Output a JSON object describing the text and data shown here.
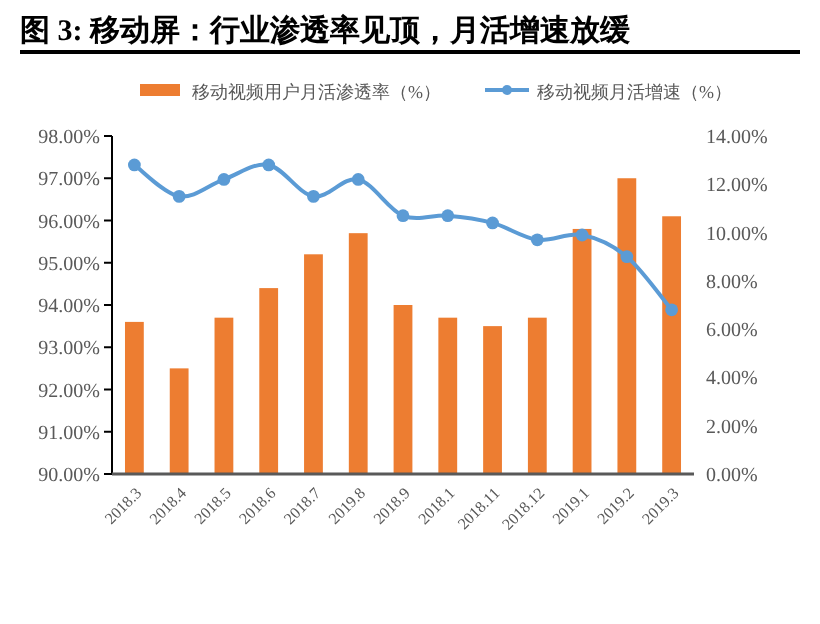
{
  "chart_data": {
    "type": "bar",
    "title": "图 3: 移动屏：行业渗透率见顶，月活增速放缓",
    "categories": [
      "2018.3",
      "2018.4",
      "2018.5",
      "2018.6",
      "2018.7",
      "2019.8",
      "2018.9",
      "2018.1",
      "2018.11",
      "2018.12",
      "2019.1",
      "2019.2",
      "2019.3"
    ],
    "series": [
      {
        "name": "移动视频用户月活渗透率（%）",
        "color": "#ed7d31",
        "values": [
          93.6,
          92.5,
          93.7,
          94.4,
          95.2,
          95.7,
          94.0,
          93.7,
          93.5,
          93.7,
          95.8,
          97.0,
          96.1
        ]
      },
      {
        "name": "移动视频月活增速（%）",
        "type": "line",
        "axis": "y2",
        "color": "#5b9bd5",
        "marker": "circle",
        "values": [
          12.8,
          11.5,
          12.2,
          12.8,
          11.5,
          12.2,
          10.7,
          10.7,
          10.4,
          9.7,
          9.9,
          9.0,
          6.8
        ]
      }
    ],
    "ylim": [
      90,
      98
    ],
    "yticks": [
      {
        "value": 90,
        "label": "90.00%"
      },
      {
        "value": 91,
        "label": "91.00%"
      },
      {
        "value": 92,
        "label": "92.00%"
      },
      {
        "value": 93,
        "label": "93.00%"
      },
      {
        "value": 94,
        "label": "94.00%"
      },
      {
        "value": 95,
        "label": "95.00%"
      },
      {
        "value": 96,
        "label": "96.00%"
      },
      {
        "value": 97,
        "label": "97.00%"
      },
      {
        "value": 98,
        "label": "98.00%"
      }
    ],
    "y2lim": [
      0,
      14
    ],
    "y2ticks": [
      {
        "value": 0,
        "label": "0.00%"
      },
      {
        "value": 2,
        "label": "2.00%"
      },
      {
        "value": 4,
        "label": "4.00%"
      },
      {
        "value": 6,
        "label": "6.00%"
      },
      {
        "value": 8,
        "label": "8.00%"
      },
      {
        "value": 10,
        "label": "10.00%"
      },
      {
        "value": 12,
        "label": "12.00%"
      },
      {
        "value": 14,
        "label": "14.00%"
      }
    ],
    "grid": false,
    "legend": "top"
  }
}
